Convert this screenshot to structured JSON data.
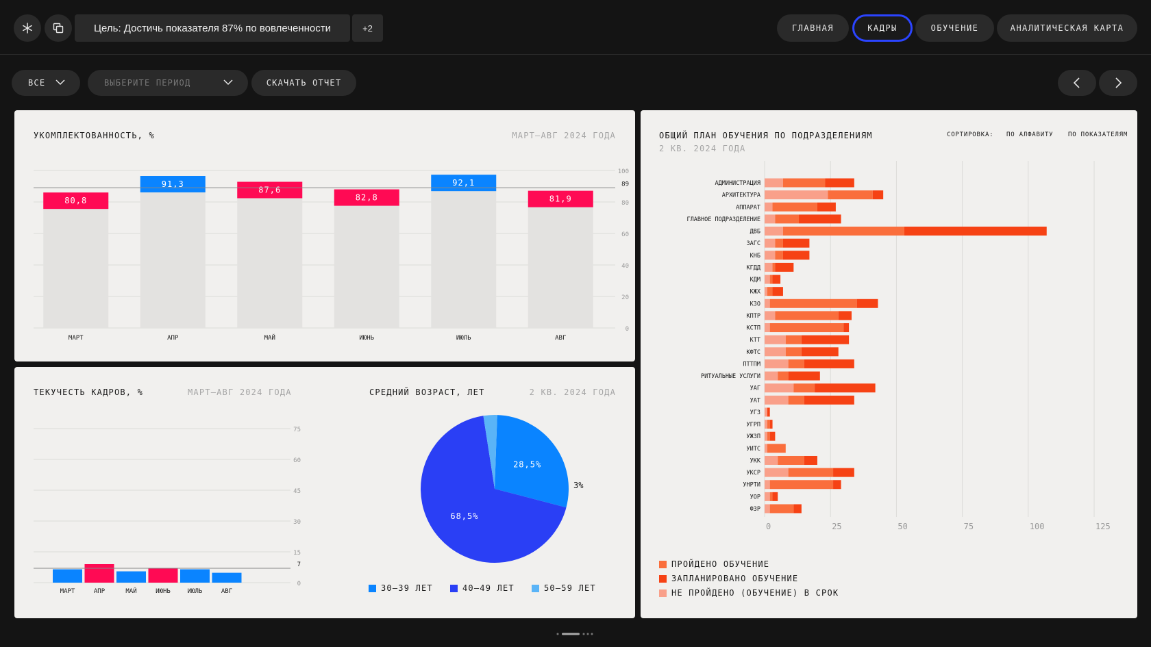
{
  "header": {
    "goal": "Цель: Достичь показателя 87% по вовлеченности",
    "extra_count": "+2",
    "nav": [
      {
        "label": "ГЛАВНАЯ",
        "active": false
      },
      {
        "label": "КАДРЫ",
        "active": true
      },
      {
        "label": "ОБУЧЕНИЕ",
        "active": false
      },
      {
        "label": "АНАЛИТИЧЕСКАЯ КАРТА",
        "active": false
      }
    ]
  },
  "filters": {
    "scope": "ВСЕ",
    "period_placeholder": "ВЫБЕРИТЕ ПЕРИОД",
    "download": "СКАЧАТЬ ОТЧЕТ"
  },
  "staffing": {
    "title": "УКОМПЛЕКТОВАННОСТЬ, %",
    "period": "МАРТ–АВГ 2024 ГОДА",
    "chart_data": {
      "type": "bar",
      "categories": [
        "МАРТ",
        "АПР",
        "МАЙ",
        "ИЮНЬ",
        "ИЮЛЬ",
        "АВГ"
      ],
      "values": [
        80.8,
        91.3,
        87.6,
        82.8,
        92.1,
        81.9
      ],
      "value_labels": [
        "80,8",
        "91,3",
        "87,6",
        "82,8",
        "92,1",
        "81,9"
      ],
      "ylim": [
        0,
        100
      ],
      "yticks": [
        "0",
        "20",
        "40",
        "60",
        "80",
        "100"
      ],
      "target": 89,
      "target_label": "89",
      "colors": {
        "above": "#0a84ff",
        "below": "#ff0a54",
        "bar": "#e3e2e0"
      }
    }
  },
  "turnover": {
    "title": "ТЕКУЧЕСТЬ КАДРОВ, %",
    "period": "МАРТ–АВГ 2024 ГОДА",
    "chart_data": {
      "type": "bar",
      "categories": [
        "МАРТ",
        "АПР",
        "МАЙ",
        "ИЮНЬ",
        "ИЮЛЬ",
        "АВГ"
      ],
      "values": [
        6.5,
        9,
        5.5,
        7,
        6.5,
        4.8
      ],
      "ylim": [
        0,
        75
      ],
      "yticks": [
        "0",
        "15",
        "30",
        "45",
        "60",
        "75"
      ],
      "target": 7,
      "target_label": "7",
      "colors": {
        "above": "#ff0a54",
        "below": "#0a84ff"
      }
    }
  },
  "age": {
    "title": "СРЕДНИЙ ВОЗРАСТ, ЛЕТ",
    "period": "2 КВ. 2024 ГОДА",
    "chart_data": {
      "type": "pie",
      "labels": [
        "30–39 ЛЕТ",
        "40–49 ЛЕТ",
        "50–59 ЛЕТ"
      ],
      "values": [
        28.5,
        68.5,
        3
      ],
      "value_labels": [
        "28,5%",
        "68,5%",
        "3%"
      ],
      "colors": [
        "#0a84ff",
        "#2a3ff5",
        "#5ab4f7"
      ]
    }
  },
  "training": {
    "title": "ОБЩИЙ ПЛАН ОБУЧЕНИЯ ПО ПОДРАЗДЕЛЕНИЯМ",
    "period": "2 КВ. 2024 ГОДА",
    "sort_label": "СОРТИРОВКА:",
    "sort_options": [
      "ПО АЛФАВИТУ",
      "ПО ПОКАЗАТЕЛЯМ"
    ],
    "chart_data": {
      "type": "bar",
      "orientation": "horizontal",
      "stacked": true,
      "categories": [
        "АДМИНИСТРАЦИЯ",
        "АРХИТЕКТУРА",
        "АППАРАТ",
        "ГЛАВНОЕ ПОДРАЗДЕЛЕНИЕ",
        "ДВБ",
        "ЗАГС",
        "КНБ",
        "КГДД",
        "КДМ",
        "КЖХ",
        "КЗО",
        "КПТР",
        "КСТП",
        "КТТ",
        "КФТС",
        "ПТТПМ",
        "РИТУАЛЬНЫЕ УСЛУГИ",
        "УАГ",
        "УАТ",
        "УГЗ",
        "УГРП",
        "УЖЗП",
        "УИТС",
        "УКК",
        "УКСР",
        "УНРТИ",
        "УОР",
        "ФЗР"
      ],
      "series": [
        {
          "name": "НЕ ПРОЙДЕНО (ОБУЧЕНИЕ) В СРОК",
          "color": "#f9a08a",
          "values": [
            7,
            24,
            3,
            4,
            7,
            4,
            4,
            3,
            2,
            1,
            2,
            4,
            2,
            8,
            8,
            9,
            5,
            11,
            9,
            1,
            1,
            1,
            1,
            5,
            9,
            2,
            2,
            2
          ]
        },
        {
          "name": "ПРОЙДЕНО ОБУЧЕНИЕ",
          "color": "#fa6e3c",
          "values": [
            16,
            17,
            17,
            9,
            46,
            3,
            3,
            1,
            1,
            2,
            33,
            24,
            28,
            6,
            6,
            6,
            4,
            8,
            6,
            0,
            1,
            1,
            7,
            10,
            17,
            24,
            1,
            9
          ]
        },
        {
          "name": "ЗАПЛАНИРОВАНО ОБУЧЕНИЕ",
          "color": "#f64214",
          "values": [
            11,
            4,
            7,
            16,
            54,
            10,
            10,
            7,
            3,
            4,
            8,
            5,
            2,
            18,
            14,
            19,
            12,
            23,
            19,
            1,
            1,
            2,
            0,
            5,
            8,
            3,
            2,
            3
          ]
        }
      ],
      "legend_order": [
        "ПРОЙДЕНО ОБУЧЕНИЕ",
        "ЗАПЛАНИРОВАНО ОБУЧЕНИЕ",
        "НЕ ПРОЙДЕНО (ОБУЧЕНИЕ) В СРОК"
      ],
      "xlim": [
        0,
        125
      ],
      "xticks": [
        "0",
        "25",
        "50",
        "75",
        "100",
        "125"
      ]
    }
  }
}
